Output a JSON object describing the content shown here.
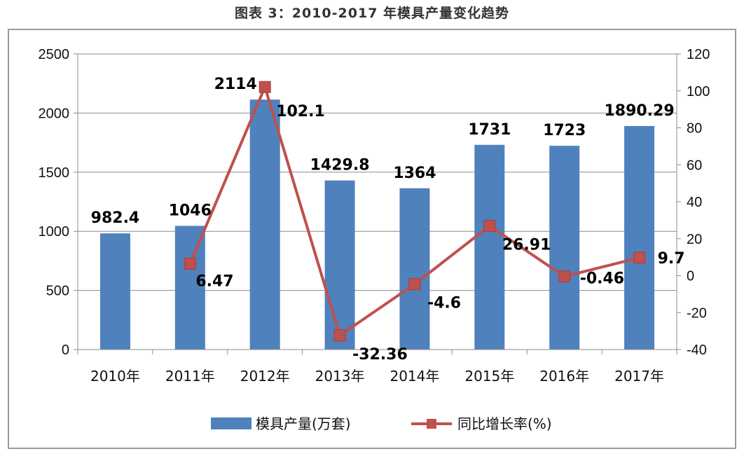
{
  "title": "图表 3：2010-2017 年模具产量变化趋势",
  "chart_data": {
    "type": "bar",
    "categories": [
      "2010年",
      "2011年",
      "2012年",
      "2013年",
      "2014年",
      "2015年",
      "2016年",
      "2017年"
    ],
    "series": [
      {
        "name": "模具产量(万套)",
        "type": "bar",
        "axis": "left",
        "color": "#4F81BD",
        "values": [
          982.4,
          1046,
          2114,
          1429.8,
          1364,
          1731,
          1723,
          1890.29
        ],
        "labels": [
          "982.4",
          "1046",
          "2114",
          "1429.8",
          "1364",
          "1731",
          "1723",
          "1890.29"
        ]
      },
      {
        "name": "同比增长率(%)",
        "type": "line",
        "axis": "right",
        "color": "#C0504D",
        "values": [
          null,
          6.47,
          102.1,
          -32.36,
          -4.6,
          26.91,
          -0.46,
          9.7
        ],
        "labels": [
          "",
          "6.47",
          "102.1",
          "-32.36",
          "-4.6",
          "26.91",
          "-0.46",
          "9.7"
        ]
      }
    ],
    "y_left": {
      "range": [
        0,
        2500
      ],
      "ticks": [
        "0",
        "500",
        "1000",
        "1500",
        "2000",
        "2500"
      ]
    },
    "y_right": {
      "range": [
        -40,
        120
      ],
      "ticks": [
        "-40",
        "-20",
        "0",
        "20",
        "40",
        "60",
        "80",
        "100",
        "120"
      ]
    },
    "grid": true,
    "legend_position": "bottom"
  }
}
